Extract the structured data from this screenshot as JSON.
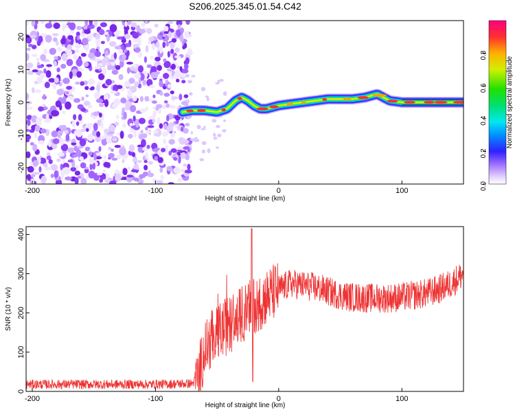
{
  "title": "S206.2025.345.01.54.C42",
  "chart_data": [
    {
      "type": "heatmap",
      "xlabel": "Height of straight line (km)",
      "ylabel": "Frequency (Hz)",
      "xlim": [
        -205,
        150
      ],
      "ylim": [
        -25,
        25
      ],
      "xticks": [
        -200,
        -100,
        0,
        100
      ],
      "yticks": [
        -20,
        -10,
        0,
        10,
        20
      ],
      "noise_region_x": [
        -205,
        -75
      ],
      "ridge": {
        "x": [
          -78,
          -70,
          -60,
          -50,
          -42,
          -35,
          -30,
          -25,
          -20,
          -15,
          -10,
          -5,
          0,
          10,
          20,
          30,
          40,
          50,
          60,
          70,
          75,
          80,
          85,
          90,
          100,
          110,
          120,
          130,
          140,
          150
        ],
        "f": [
          -3,
          -2.5,
          -2.5,
          -3,
          -2,
          0.5,
          1.5,
          0.5,
          -1,
          -2,
          -2,
          -1.5,
          -1,
          -0.5,
          0,
          0.5,
          1,
          1,
          1,
          1.5,
          2,
          2.5,
          1.5,
          0.5,
          0,
          0,
          0,
          0,
          0,
          0
        ]
      },
      "colorbar": {
        "label": "Normalized spectral amplitude",
        "ticks": [
          "0.0",
          "0.2",
          "0.4",
          "0.6",
          "0.8"
        ],
        "range": [
          0,
          1
        ]
      }
    },
    {
      "type": "line",
      "xlabel": "Height of straight line (km)",
      "ylabel": "SNR (10 * v/v)",
      "xlim": [
        -205,
        150
      ],
      "ylim": [
        0,
        420
      ],
      "xticks": [
        -200,
        -100,
        0,
        100
      ],
      "yticks": [
        0,
        100,
        200,
        300,
        400
      ],
      "series": [
        {
          "name": "SNR",
          "color": "#ee3333",
          "trend_x": [
            -205,
            -100,
            -70,
            -65,
            -60,
            -50,
            -40,
            -30,
            -20,
            -10,
            0,
            10,
            20,
            30,
            40,
            50,
            60,
            70,
            80,
            90,
            100,
            110,
            120,
            130,
            140,
            150
          ],
          "trend_y": [
            18,
            18,
            20,
            40,
            110,
            150,
            170,
            195,
            220,
            240,
            260,
            275,
            270,
            265,
            255,
            245,
            240,
            238,
            238,
            238,
            240,
            245,
            250,
            260,
            275,
            300
          ]
        }
      ]
    }
  ]
}
